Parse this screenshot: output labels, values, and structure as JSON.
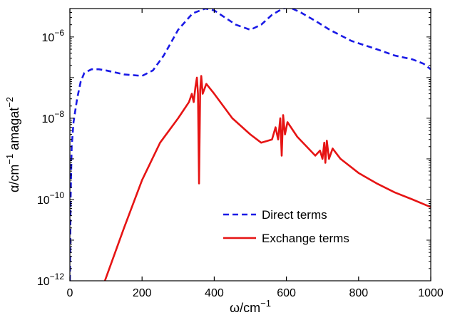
{
  "chart_data": {
    "type": "line",
    "xlabel": "ω/cm",
    "xlabel_sup": "−1",
    "ylabel_parts": [
      "α/cm",
      "−1",
      " amagat",
      "−2"
    ],
    "xlim": [
      0,
      1000
    ],
    "ylim": [
      1e-12,
      5e-06
    ],
    "yscale": "log",
    "x_ticks": [
      0,
      200,
      400,
      600,
      800,
      1000
    ],
    "x_tick_labels": [
      "0",
      "200",
      "400",
      "600",
      "800",
      "1000"
    ],
    "y_ticks": [
      -12,
      -10,
      -8,
      -6
    ],
    "y_tick_labels": [
      {
        "base": "10",
        "exp": "−12"
      },
      {
        "base": "10",
        "exp": "−10"
      },
      {
        "base": "10",
        "exp": "−8"
      },
      {
        "base": "10",
        "exp": "−6"
      }
    ],
    "legend_position": "lower-right",
    "series": [
      {
        "name": "Direct terms",
        "color": "#1a1ae6",
        "style": "dashed",
        "points": [
          [
            0,
            1e-12
          ],
          [
            2,
            1e-10
          ],
          [
            5,
            2e-09
          ],
          [
            10,
            8e-09
          ],
          [
            20,
            3e-08
          ],
          [
            30,
            8e-08
          ],
          [
            40,
            1.3e-07
          ],
          [
            60,
            1.6e-07
          ],
          [
            80,
            1.6e-07
          ],
          [
            100,
            1.5e-07
          ],
          [
            150,
            1.2e-07
          ],
          [
            200,
            1.1e-07
          ],
          [
            230,
            1.5e-07
          ],
          [
            260,
            3.5e-07
          ],
          [
            300,
            1.5e-06
          ],
          [
            340,
            3.8e-06
          ],
          [
            375,
            5e-06
          ],
          [
            400,
            4.5e-06
          ],
          [
            430,
            3e-06
          ],
          [
            460,
            2e-06
          ],
          [
            500,
            1.5e-06
          ],
          [
            530,
            2e-06
          ],
          [
            560,
            3.5e-06
          ],
          [
            590,
            5e-06
          ],
          [
            610,
            5.3e-06
          ],
          [
            640,
            4e-06
          ],
          [
            680,
            2.5e-06
          ],
          [
            720,
            1.5e-06
          ],
          [
            780,
            8e-07
          ],
          [
            850,
            5e-07
          ],
          [
            900,
            3.5e-07
          ],
          [
            950,
            2.8e-07
          ],
          [
            980,
            2.2e-07
          ],
          [
            1000,
            1.6e-07
          ]
        ]
      },
      {
        "name": "Exchange terms",
        "color": "#e61414",
        "style": "solid",
        "points": [
          [
            97,
            1e-12
          ],
          [
            150,
            2e-11
          ],
          [
            200,
            3e-10
          ],
          [
            250,
            2.5e-09
          ],
          [
            300,
            1e-08
          ],
          [
            330,
            2.5e-08
          ],
          [
            338,
            4e-08
          ],
          [
            343,
            2.5e-08
          ],
          [
            348,
            6e-08
          ],
          [
            352,
            1e-07
          ],
          [
            355,
            4e-08
          ],
          [
            358,
            2.5e-10
          ],
          [
            361,
            5e-08
          ],
          [
            364,
            1.1e-07
          ],
          [
            368,
            4e-08
          ],
          [
            378,
            7e-08
          ],
          [
            400,
            4e-08
          ],
          [
            450,
            1e-08
          ],
          [
            500,
            4e-09
          ],
          [
            530,
            2.5e-09
          ],
          [
            560,
            3e-09
          ],
          [
            570,
            6e-09
          ],
          [
            577,
            3e-09
          ],
          [
            583,
            1e-08
          ],
          [
            587,
            1.2e-09
          ],
          [
            591,
            1.2e-08
          ],
          [
            596,
            4e-09
          ],
          [
            603,
            8e-09
          ],
          [
            630,
            3.5e-09
          ],
          [
            680,
            1.2e-09
          ],
          [
            693,
            1.6e-09
          ],
          [
            700,
            1e-09
          ],
          [
            705,
            2.5e-09
          ],
          [
            708,
            8e-10
          ],
          [
            712,
            2.8e-09
          ],
          [
            718,
            1e-09
          ],
          [
            728,
            1.8e-09
          ],
          [
            750,
            1e-09
          ],
          [
            800,
            4.5e-10
          ],
          [
            850,
            2.5e-10
          ],
          [
            900,
            1.5e-10
          ],
          [
            950,
            1e-10
          ],
          [
            1000,
            6.5e-11
          ]
        ]
      }
    ]
  }
}
